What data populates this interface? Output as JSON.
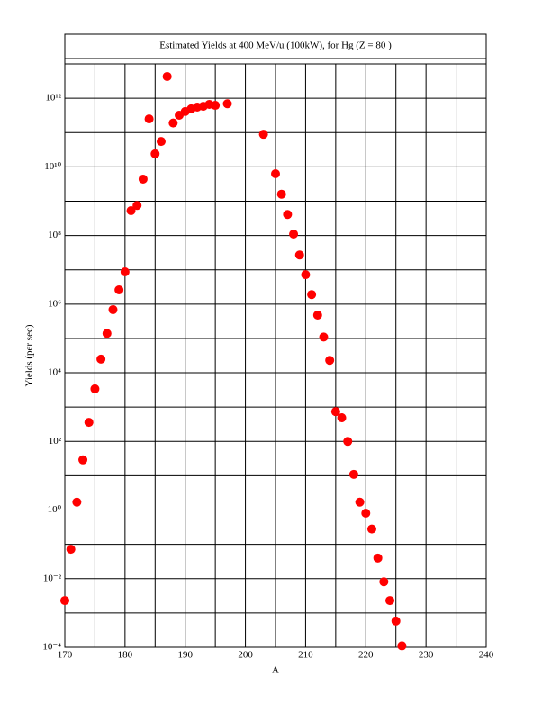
{
  "chart_data": {
    "type": "scatter",
    "title": "Estimated Yields at 400 MeV/u (100kW), for Hg (Z = 80 )",
    "x_label": "A",
    "y_label": "Yields (per sec)",
    "y_scale": "log",
    "grid": true,
    "xlim": [
      170,
      240
    ],
    "xticks": [
      170,
      180,
      190,
      200,
      210,
      220,
      230,
      240
    ],
    "minor_xticks": [
      175,
      185,
      195,
      205,
      215,
      225,
      235
    ],
    "ylim": [
      0.0001,
      10000000000000
    ],
    "yticks": [
      {
        "value": 0.0001,
        "label": "10⁻⁴"
      },
      {
        "value": 0.01,
        "label": "10⁻²"
      },
      {
        "value": 1,
        "label": "10⁰"
      },
      {
        "value": 100,
        "label": "10²"
      },
      {
        "value": 10000,
        "label": "10⁴"
      },
      {
        "value": 1000000,
        "label": "10⁶"
      },
      {
        "value": 100000000,
        "label": "10⁸"
      },
      {
        "value": 10000000000,
        "label": "10¹⁰"
      },
      {
        "value": 1000000000000,
        "label": "10¹²"
      }
    ],
    "minor_yticks": [
      0.001,
      0.1,
      10,
      1000,
      100000,
      10000000,
      1000000000,
      100000000000,
      10000000000000
    ],
    "color": "#ff0000",
    "x": [
      170,
      171,
      172,
      173,
      174,
      175,
      176,
      177,
      178,
      179,
      180,
      181,
      182,
      183,
      184,
      185,
      186,
      187,
      188,
      189,
      190,
      191,
      192,
      193,
      194,
      195,
      197,
      203,
      205,
      206,
      207,
      208,
      209,
      210,
      211,
      212,
      213,
      214,
      215,
      216,
      217,
      218,
      219,
      220,
      221,
      222,
      223,
      224,
      225,
      226
    ],
    "values": [
      0.0023,
      0.072,
      1.7,
      29,
      360,
      3400,
      25000,
      140000,
      690000,
      2600000,
      8700000,
      530000000,
      750000000,
      4400000000,
      250000000000,
      24000000000,
      55000000000,
      4300000000000,
      190000000000,
      320000000000,
      410000000000,
      490000000000,
      550000000000,
      580000000000,
      660000000000,
      620000000000,
      690000000000,
      89000000000,
      6300000000,
      1600000000,
      410000000,
      110000000,
      27000000,
      7200000,
      1900000,
      480000,
      110000,
      23000,
      740,
      490,
      100,
      11,
      1.7,
      0.81,
      0.28,
      0.04,
      0.0081,
      0.0023,
      0.00058,
      0.00011
    ]
  }
}
